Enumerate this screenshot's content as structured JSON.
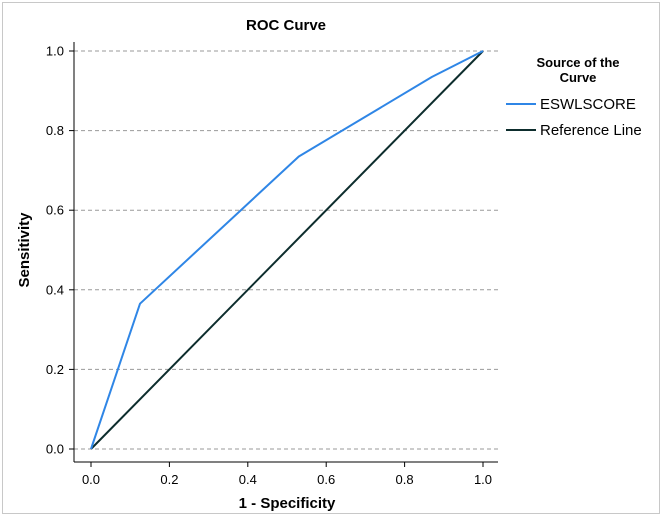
{
  "chart_data": {
    "type": "line",
    "title": "ROC Curve",
    "xlabel": "1 - Specificity",
    "ylabel": "Sensitivity",
    "xlim": [
      0,
      1
    ],
    "ylim": [
      0,
      1
    ],
    "x_ticks": [
      "0.0",
      "0.2",
      "0.4",
      "0.6",
      "0.8",
      "1.0"
    ],
    "y_ticks": [
      "0.0",
      "0.2",
      "0.4",
      "0.6",
      "0.8",
      "1.0"
    ],
    "grid": "horizontal dashed",
    "legend": {
      "title_line1": "Source of the",
      "title_line2": "Curve",
      "placement": "right"
    },
    "series": [
      {
        "name": "ESWLSCORE",
        "color": "#2f86e6",
        "x": [
          0.0,
          0.125,
          0.53,
          0.87,
          1.0
        ],
        "y": [
          0.0,
          0.365,
          0.735,
          0.935,
          1.0
        ]
      },
      {
        "name": "Reference Line",
        "color": "#0d2d2d",
        "x": [
          0.0,
          1.0
        ],
        "y": [
          0.0,
          1.0
        ]
      }
    ]
  }
}
